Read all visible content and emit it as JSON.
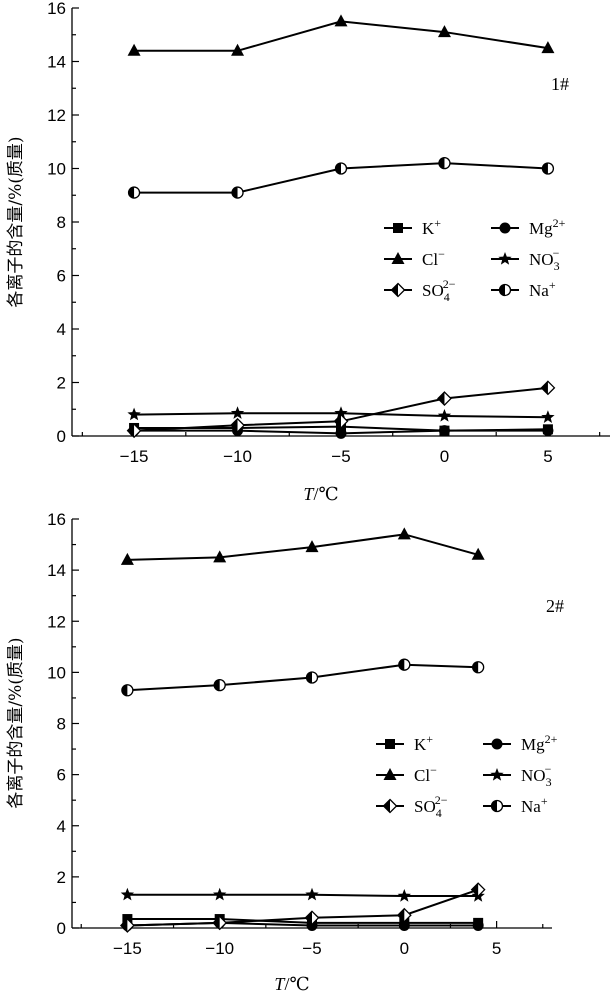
{
  "chart_data": [
    {
      "type": "line",
      "annotation": "1#",
      "xlabel": "T/℃",
      "ylabel": "各离子的含量/%(质量)",
      "xlim": [
        -18,
        8
      ],
      "ylim": [
        0,
        16
      ],
      "xticks": [
        -15,
        -10,
        -5,
        0,
        5
      ],
      "yticks": [
        0,
        2,
        4,
        6,
        8,
        10,
        12,
        14,
        16
      ],
      "series": [
        {
          "name": "K+",
          "legend": {
            "base": "K",
            "sup": "+",
            "sub": ""
          },
          "marker": "square",
          "x": [
            -15,
            -10,
            -5,
            0,
            5
          ],
          "values": [
            0.3,
            0.3,
            0.35,
            0.2,
            0.25
          ]
        },
        {
          "name": "Mg2+",
          "legend": {
            "base": "Mg",
            "sup": "2+",
            "sub": ""
          },
          "marker": "circle",
          "x": [
            -15,
            -10,
            -5,
            0,
            5
          ],
          "values": [
            0.2,
            0.2,
            0.1,
            0.2,
            0.2
          ]
        },
        {
          "name": "Cl-",
          "legend": {
            "base": "Cl",
            "sup": "−",
            "sub": ""
          },
          "marker": "triangle",
          "x": [
            -15,
            -10,
            -5,
            0,
            5
          ],
          "values": [
            14.4,
            14.4,
            15.5,
            15.1,
            14.5
          ]
        },
        {
          "name": "NO3-",
          "legend": {
            "base": "NO",
            "sup": "−",
            "sub": "3"
          },
          "marker": "star",
          "x": [
            -15,
            -10,
            -5,
            0,
            5
          ],
          "values": [
            0.8,
            0.85,
            0.85,
            0.75,
            0.7
          ]
        },
        {
          "name": "SO42-",
          "legend": {
            "base": "SO",
            "sup": "2−",
            "sub": "4"
          },
          "marker": "diamond",
          "x": [
            -15,
            -10,
            -5,
            0,
            5
          ],
          "values": [
            0.2,
            0.4,
            0.55,
            1.4,
            1.8
          ]
        },
        {
          "name": "Na+",
          "legend": {
            "base": "Na",
            "sup": "+",
            "sub": ""
          },
          "marker": "halfcircle",
          "x": [
            -15,
            -10,
            -5,
            0,
            5
          ],
          "values": [
            9.1,
            9.1,
            10.0,
            10.2,
            10.0
          ]
        }
      ]
    },
    {
      "type": "line",
      "annotation": "2#",
      "xlabel": "T/℃",
      "ylabel": "各离子的含量/%(质量)",
      "xlim": [
        -18,
        8
      ],
      "ylim": [
        0,
        16
      ],
      "xticks": [
        -15,
        -10,
        -5,
        0,
        5
      ],
      "yticks": [
        0,
        2,
        4,
        6,
        8,
        10,
        12,
        14,
        16
      ],
      "series": [
        {
          "name": "K+",
          "legend": {
            "base": "K",
            "sup": "+",
            "sub": ""
          },
          "marker": "square",
          "x": [
            -15,
            -10,
            -5,
            0,
            4
          ],
          "values": [
            0.35,
            0.35,
            0.2,
            0.2,
            0.2
          ]
        },
        {
          "name": "Mg2+",
          "legend": {
            "base": "Mg",
            "sup": "2+",
            "sub": ""
          },
          "marker": "circle",
          "x": [
            -15,
            -10,
            -5,
            0,
            4
          ],
          "values": [
            0.1,
            0.2,
            0.1,
            0.1,
            0.1
          ]
        },
        {
          "name": "Cl-",
          "legend": {
            "base": "Cl",
            "sup": "−",
            "sub": ""
          },
          "marker": "triangle",
          "x": [
            -15,
            -10,
            -5,
            0,
            4
          ],
          "values": [
            14.4,
            14.5,
            14.9,
            15.4,
            14.6
          ]
        },
        {
          "name": "NO3-",
          "legend": {
            "base": "NO",
            "sup": "−",
            "sub": "3"
          },
          "marker": "star",
          "x": [
            -15,
            -10,
            -5,
            0,
            4
          ],
          "values": [
            1.3,
            1.3,
            1.3,
            1.25,
            1.25
          ]
        },
        {
          "name": "SO42-",
          "legend": {
            "base": "SO",
            "sup": "2−",
            "sub": "4"
          },
          "marker": "diamond",
          "x": [
            -15,
            -10,
            -5,
            0,
            4
          ],
          "values": [
            0.1,
            0.2,
            0.4,
            0.5,
            1.5
          ]
        },
        {
          "name": "Na+",
          "legend": {
            "base": "Na",
            "sup": "+",
            "sub": ""
          },
          "marker": "halfcircle",
          "x": [
            -15,
            -10,
            -5,
            0,
            4
          ],
          "values": [
            9.3,
            9.5,
            9.8,
            10.3,
            10.2
          ]
        }
      ]
    }
  ]
}
